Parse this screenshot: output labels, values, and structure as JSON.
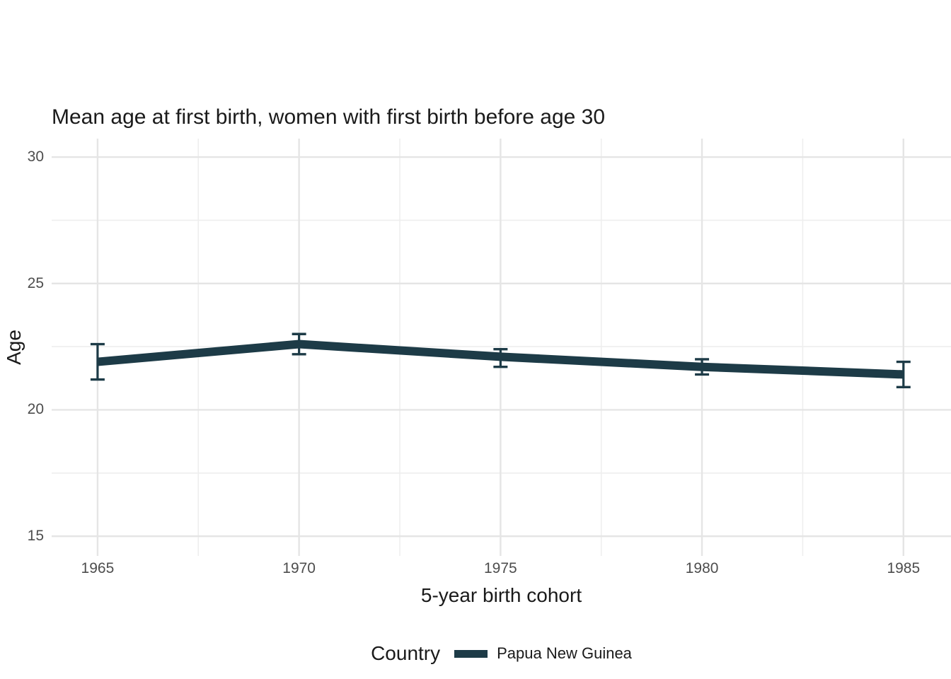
{
  "chart_data": {
    "type": "line",
    "title": "Mean age at first birth, women with first birth before age 30",
    "xlabel": "5-year birth cohort",
    "ylabel": "Age",
    "x": [
      1965,
      1970,
      1975,
      1980,
      1985
    ],
    "series": [
      {
        "name": "Papua New Guinea",
        "values": [
          21.9,
          22.6,
          22.1,
          21.7,
          21.4
        ],
        "ci_lower": [
          21.2,
          22.2,
          21.7,
          21.4,
          20.9
        ],
        "ci_upper": [
          22.6,
          23.0,
          22.4,
          22.0,
          21.9
        ]
      }
    ],
    "x_ticks": [
      1965,
      1970,
      1975,
      1980,
      1985
    ],
    "y_ticks": [
      15,
      20,
      25,
      30
    ],
    "x_minor": [
      1967.5,
      1972.5,
      1977.5,
      1982.5
    ],
    "y_minor": [
      17.5,
      22.5,
      27.5
    ],
    "xlim": [
      1963.86,
      1986.18
    ],
    "ylim": [
      14.22,
      30.73
    ],
    "grid": true,
    "legend": {
      "title": "Country",
      "position": "bottom",
      "items": [
        {
          "label": "Papua New Guinea"
        }
      ]
    }
  },
  "colors": {
    "line": "#1d3b47",
    "grid_major": "#e5e5e5",
    "grid_minor": "#eeeeee",
    "tick_label": "#4d4d4d",
    "text": "#1a1a1a",
    "background": "#ffffff"
  }
}
